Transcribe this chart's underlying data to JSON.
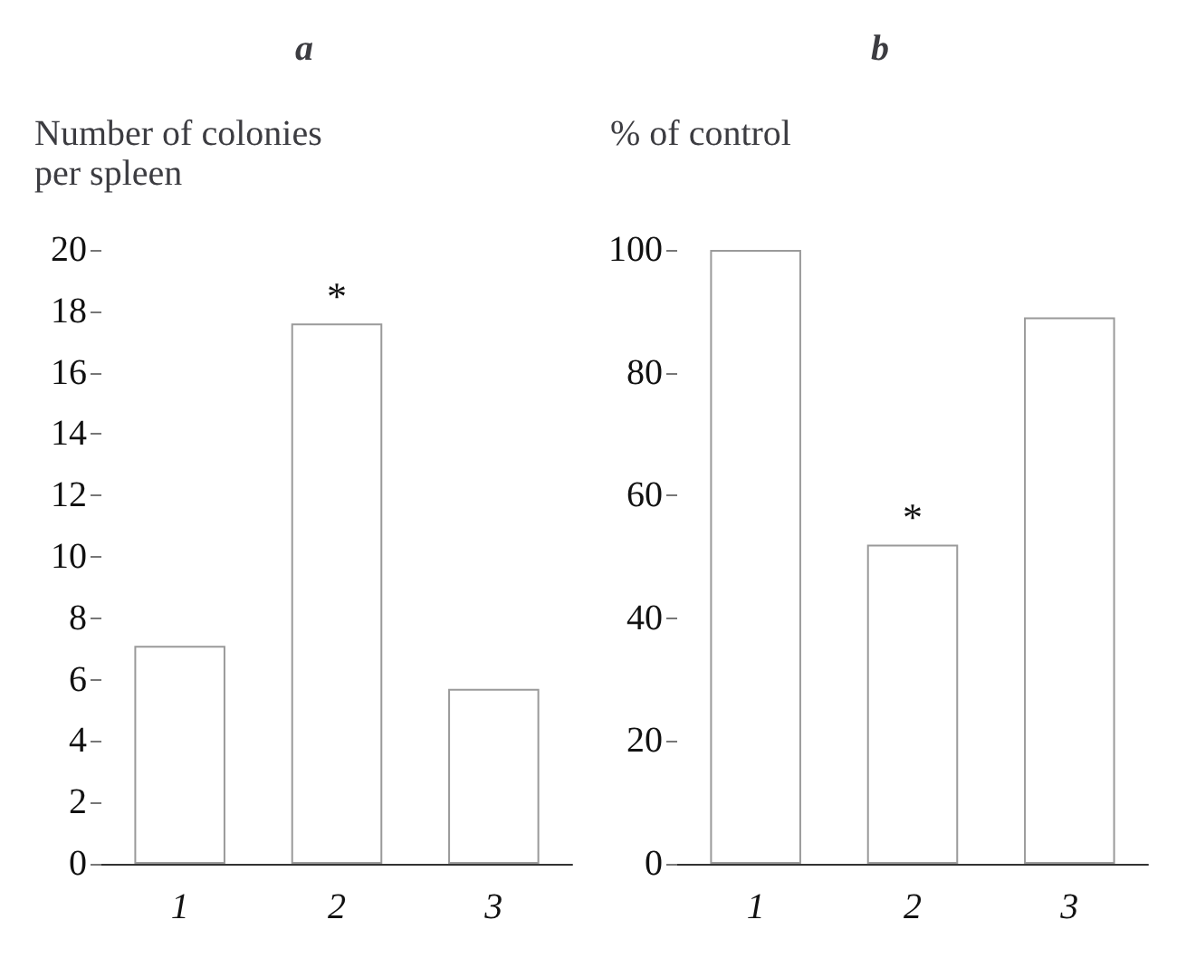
{
  "chart_data": [
    {
      "type": "bar",
      "title": "a",
      "ylabel": "Number of colonies\nper spleen",
      "categories": [
        "1",
        "2",
        "3"
      ],
      "values": [
        7.1,
        17.6,
        5.7
      ],
      "color": "#9a9a9a",
      "ylim": [
        0,
        20
      ],
      "yticks": [
        0,
        2,
        4,
        6,
        8,
        10,
        12,
        14,
        16,
        18,
        20
      ],
      "grid": false,
      "annotations": [
        {
          "text": "*",
          "x": "2",
          "y": 17.6
        }
      ]
    },
    {
      "type": "bar",
      "title": "b",
      "ylabel": "% of control",
      "categories": [
        "1",
        "2",
        "3"
      ],
      "values": [
        100,
        52,
        89
      ],
      "color": "#9a9a9a",
      "ylim": [
        0,
        100
      ],
      "yticks": [
        0,
        20,
        40,
        60,
        80,
        100
      ],
      "grid": false,
      "annotations": [
        {
          "text": "*",
          "x": "2",
          "y": 52
        }
      ]
    }
  ]
}
